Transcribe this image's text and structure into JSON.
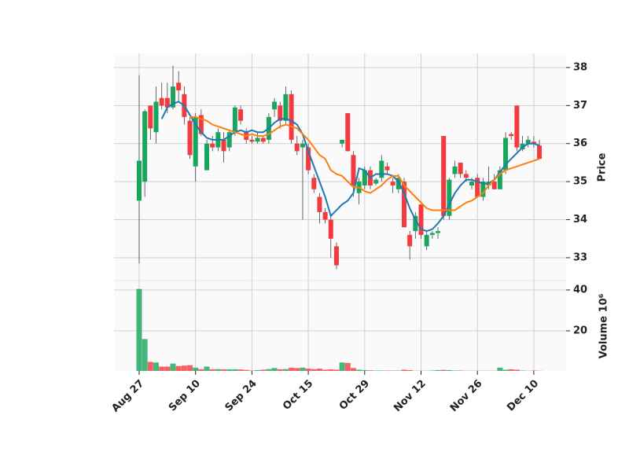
{
  "chart_data": {
    "type": "candlestick",
    "categories": [
      "Aug 27",
      null,
      null,
      null,
      null,
      null,
      null,
      null,
      null,
      null,
      "Sep 10",
      null,
      null,
      null,
      null,
      null,
      null,
      null,
      null,
      null,
      "Sep 24",
      null,
      null,
      null,
      null,
      null,
      null,
      null,
      null,
      null,
      "Oct 15",
      null,
      null,
      null,
      null,
      null,
      null,
      null,
      null,
      null,
      "Oct 29",
      null,
      null,
      null,
      null,
      null,
      null,
      null,
      null,
      null,
      "Nov 12",
      null,
      null,
      null,
      null,
      null,
      null,
      null,
      null,
      null,
      "Nov 26",
      null,
      null,
      null,
      null,
      null,
      null,
      null,
      null,
      null,
      "Dec 10",
      null
    ],
    "open": [
      34.5,
      35.0,
      37.0,
      36.3,
      37.2,
      37.2,
      36.95,
      37.6,
      37.3,
      36.6,
      35.4,
      36.75,
      35.3,
      36.0,
      35.9,
      36.1,
      35.9,
      36.3,
      36.9,
      36.3,
      36.1,
      36.05,
      36.15,
      36.1,
      36.9,
      37.0,
      36.6,
      37.3,
      36.0,
      35.9,
      35.9,
      35.1,
      34.6,
      34.2,
      34.0,
      33.3,
      36.0,
      36.8,
      35.7,
      34.7,
      34.9,
      35.3,
      34.95,
      35.1,
      35.4,
      35.0,
      34.8,
      35.0,
      33.6,
      33.7,
      34.4,
      33.3,
      33.6,
      33.65,
      36.2,
      34.1,
      35.2,
      35.5,
      35.2,
      34.9,
      35.1,
      34.6,
      34.9,
      35.0,
      34.8,
      35.3,
      36.25,
      37.0,
      35.85,
      36.0,
      36.05,
      35.95
    ],
    "high": [
      37.8,
      36.9,
      37.0,
      37.5,
      37.6,
      37.6,
      38.05,
      37.9,
      37.5,
      36.7,
      36.8,
      36.9,
      36.1,
      36.2,
      36.4,
      36.3,
      36.35,
      37.0,
      37.0,
      36.4,
      36.2,
      36.3,
      36.2,
      36.8,
      37.2,
      37.1,
      37.5,
      37.4,
      36.2,
      36.1,
      36.0,
      35.2,
      34.7,
      34.3,
      34.1,
      33.4,
      36.1,
      36.8,
      35.8,
      35.1,
      35.4,
      35.4,
      35.1,
      35.7,
      35.5,
      35.1,
      35.2,
      35.1,
      33.7,
      34.2,
      34.4,
      33.7,
      33.7,
      33.8,
      36.2,
      35.1,
      35.55,
      35.5,
      35.3,
      35.1,
      35.2,
      35.1,
      35.4,
      35.2,
      35.4,
      36.3,
      36.3,
      37.0,
      36.2,
      36.2,
      36.2,
      36.1
    ],
    "low": [
      32.85,
      34.6,
      36.1,
      36.0,
      36.9,
      36.8,
      36.9,
      37.1,
      36.5,
      35.6,
      35.0,
      36.2,
      35.3,
      35.8,
      35.8,
      35.5,
      35.8,
      36.2,
      36.5,
      36.0,
      36.0,
      36.0,
      36.0,
      36.0,
      36.7,
      36.4,
      36.5,
      36.0,
      35.7,
      34.0,
      35.2,
      34.7,
      33.9,
      33.9,
      33.0,
      32.7,
      35.9,
      35.8,
      34.6,
      34.4,
      34.8,
      34.8,
      34.9,
      35.0,
      35.2,
      34.7,
      34.7,
      33.8,
      32.95,
      33.5,
      33.5,
      33.2,
      33.5,
      33.5,
      34.0,
      34.0,
      35.1,
      35.1,
      35.0,
      34.8,
      34.6,
      34.5,
      34.8,
      34.8,
      34.8,
      35.2,
      36.1,
      35.8,
      35.8,
      35.9,
      35.9,
      35.6
    ],
    "close": [
      35.55,
      36.85,
      36.4,
      37.1,
      37.0,
      36.95,
      37.5,
      37.4,
      36.7,
      35.7,
      36.7,
      36.25,
      36.0,
      35.9,
      36.3,
      35.8,
      36.3,
      36.95,
      36.6,
      36.1,
      36.05,
      36.15,
      36.05,
      36.7,
      37.1,
      36.6,
      37.3,
      36.1,
      35.8,
      36.0,
      35.3,
      34.8,
      34.2,
      34.0,
      33.5,
      32.8,
      36.1,
      35.8,
      34.9,
      35.0,
      35.3,
      34.9,
      35.05,
      35.55,
      35.3,
      34.9,
      35.1,
      33.8,
      33.3,
      34.1,
      33.6,
      33.6,
      33.65,
      33.7,
      34.1,
      35.05,
      35.4,
      35.2,
      35.1,
      35.0,
      34.6,
      35.0,
      35.0,
      34.8,
      35.3,
      36.15,
      36.2,
      35.9,
      36.0,
      36.1,
      36.0,
      35.6
    ],
    "volume": [
      40.5,
      16,
      4.8,
      4.5,
      2.5,
      2.5,
      4,
      2.8,
      3,
      3.2,
      2,
      1.2,
      2.5,
      1.2,
      1.3,
      1.2,
      1.2,
      1.2,
      1.1,
      0.9,
      0.6,
      0.8,
      1,
      1.3,
      1.8,
      1.2,
      1.3,
      2,
      1.8,
      2,
      1.5,
      1.3,
      1.5,
      1,
      1.2,
      1,
      4.5,
      4.3,
      1.8,
      1,
      0.8,
      0.7,
      0.6,
      0.6,
      0.6,
      0.6,
      0.6,
      1,
      0.8,
      0.5,
      0.5,
      0.5,
      0.6,
      0.8,
      0.9,
      0.8,
      0.6,
      0.6,
      0.5,
      0.5,
      0.5,
      0.5,
      0.5,
      0.5,
      2,
      1,
      1.2,
      1,
      0.6,
      0.5,
      0.6,
      0.5
    ],
    "moving_averages": [
      {
        "color": "#1f77b4",
        "values": [
          null,
          null,
          null,
          null,
          36.65,
          36.95,
          37.05,
          37.1,
          37.0,
          36.75,
          36.5,
          36.3,
          36.15,
          36.1,
          36.1,
          36.1,
          36.2,
          36.3,
          36.35,
          36.3,
          36.35,
          36.3,
          36.3,
          36.4,
          36.55,
          36.65,
          36.65,
          36.6,
          36.5,
          36.25,
          35.8,
          35.4,
          35.0,
          34.6,
          34.1,
          34.25,
          34.4,
          34.5,
          34.7,
          35.35,
          35.3,
          35.1,
          35.2,
          35.2,
          35.2,
          35.15,
          35.0,
          34.7,
          34.3,
          34.0,
          33.75,
          33.7,
          33.75,
          33.9,
          34.1,
          34.4,
          34.7,
          34.9,
          35.05,
          35.05,
          35.0,
          34.95,
          34.95,
          35.05,
          35.25,
          35.45,
          35.6,
          35.75,
          35.9,
          36.0,
          36.0,
          35.95
        ]
      },
      {
        "color": "#ff7f0e",
        "values": [
          null,
          null,
          null,
          null,
          null,
          null,
          null,
          null,
          null,
          36.7,
          36.7,
          36.65,
          36.6,
          36.5,
          36.45,
          36.4,
          36.35,
          36.3,
          36.25,
          36.2,
          36.25,
          36.2,
          36.2,
          36.25,
          36.35,
          36.45,
          36.5,
          36.45,
          36.4,
          36.25,
          36.1,
          35.9,
          35.7,
          35.6,
          35.3,
          35.2,
          35.15,
          35.0,
          34.85,
          34.85,
          34.75,
          34.7,
          34.8,
          34.9,
          35.05,
          35.15,
          35.15,
          34.9,
          34.75,
          34.6,
          34.45,
          34.3,
          34.25,
          34.25,
          34.25,
          34.25,
          34.25,
          34.35,
          34.45,
          34.5,
          34.6,
          34.7,
          34.9,
          35.05,
          35.2,
          35.3,
          35.35,
          35.4,
          35.45,
          35.5,
          35.55,
          35.6
        ]
      }
    ],
    "up_color": "#18a55c",
    "down_color": "#f4393f",
    "ylabel": "Price",
    "y2label": "Volume  10⁶",
    "ylim": [
      32.4,
      38.37
    ],
    "yticks": [
      33,
      34,
      35,
      36,
      37,
      38
    ],
    "y2lim": [
      0.4,
      44.6
    ],
    "y2ticks": [
      20,
      40
    ],
    "grid": true
  }
}
